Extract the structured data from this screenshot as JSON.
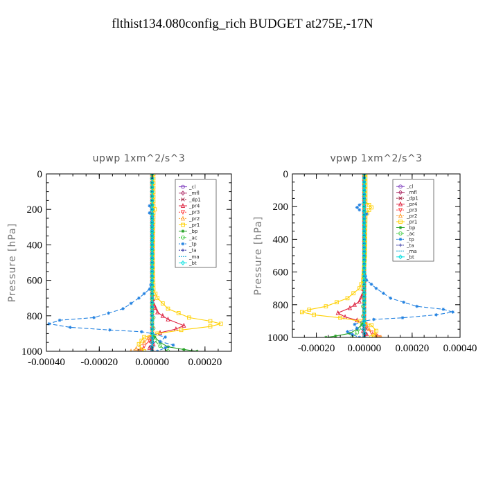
{
  "page_title": "flthist134.080config_rich  BUDGET at275E,-17N",
  "chart_data": [
    {
      "type": "line",
      "title": "upwp   1xm^2/s^3",
      "xlabel": "",
      "ylabel": "Pressure  [hPa]",
      "xlim": [
        -0.0004,
        0.0003
      ],
      "ylim": [
        1000,
        0
      ],
      "xticks": [
        -0.0004,
        -0.0002,
        0.0,
        0.0002
      ],
      "xtick_labels": [
        "-0.00040",
        "-0.00020",
        "0.00000",
        "0.00020"
      ],
      "yticks": [
        0,
        200,
        400,
        600,
        800,
        1000
      ],
      "ytick_labels": [
        "0",
        "200",
        "400",
        "600",
        "800",
        "1000"
      ],
      "legend_position": "top-right",
      "series": [
        {
          "name": "_cl",
          "color": "#7f3fbf",
          "marker": "circle",
          "dash": "solid",
          "points": [
            [
              0,
              0
            ],
            [
              0,
              1000
            ]
          ]
        },
        {
          "name": "_mfl",
          "color": "#b0306a",
          "marker": "diamond",
          "dash": "solid",
          "points": [
            [
              0,
              0
            ],
            [
              0,
              1000
            ]
          ]
        },
        {
          "name": "_dp1",
          "color": "#a02040",
          "marker": "x",
          "dash": "dash",
          "points": [
            [
              0,
              0
            ],
            [
              0,
              1000
            ]
          ]
        },
        {
          "name": "_pr4",
          "color": "#dd1f3c",
          "marker": "tri",
          "dash": "solid",
          "points": [
            [
              0,
              0
            ],
            [
              0,
              650
            ],
            [
              5e-06,
              730
            ],
            [
              2e-05,
              780
            ],
            [
              6e-05,
              820
            ],
            [
              0.00012,
              855
            ],
            [
              9e-05,
              875
            ],
            [
              3e-05,
              895
            ],
            [
              0,
              910
            ],
            [
              -5e-06,
              940
            ],
            [
              5e-06,
              960
            ],
            [
              -1e-05,
              980
            ],
            [
              0,
              1000
            ]
          ]
        },
        {
          "name": "_pr3",
          "color": "#ff4545",
          "marker": "tri-down",
          "dash": "dash",
          "points": [
            [
              0,
              0
            ],
            [
              0,
              900
            ],
            [
              -1e-05,
              940
            ],
            [
              -3e-05,
              970
            ],
            [
              -4e-05,
              990
            ],
            [
              -5e-05,
              1000
            ]
          ]
        },
        {
          "name": "_pr2",
          "color": "#ff9f30",
          "marker": "tri",
          "dash": "dash",
          "points": [
            [
              0,
              0
            ],
            [
              0,
              900
            ],
            [
              -3e-05,
              950
            ],
            [
              -6e-05,
              985
            ],
            [
              -8e-05,
              1000
            ]
          ]
        },
        {
          "name": "_pr1",
          "color": "#ffd000",
          "marker": "square",
          "dash": "solid",
          "points": [
            [
              5e-06,
              0
            ],
            [
              5e-06,
              180
            ],
            [
              1e-05,
              200
            ],
            [
              5e-06,
              220
            ],
            [
              3e-06,
              500
            ],
            [
              5e-06,
              650
            ],
            [
              2e-05,
              700
            ],
            [
              6e-05,
              760
            ],
            [
              0.00014,
              810
            ],
            [
              0.00022,
              830
            ],
            [
              0.00026,
              845
            ],
            [
              0.00022,
              860
            ],
            [
              0.00011,
              880
            ],
            [
              2e-05,
              900
            ],
            [
              -3e-05,
              920
            ],
            [
              -5e-05,
              960
            ],
            [
              -4e-05,
              990
            ],
            [
              -3e-05,
              1000
            ]
          ]
        },
        {
          "name": "_bp",
          "color": "#22a022",
          "marker": "star",
          "dash": "solid",
          "points": [
            [
              0,
              0
            ],
            [
              0,
              900
            ],
            [
              1e-05,
              920
            ],
            [
              3e-05,
              950
            ],
            [
              6e-05,
              975
            ],
            [
              0.00012,
              990
            ],
            [
              0.00017,
              1000
            ]
          ]
        },
        {
          "name": "_ac",
          "color": "#44cc44",
          "marker": "circle",
          "dash": "dash",
          "points": [
            [
              0,
              0
            ],
            [
              0,
              780
            ],
            [
              5e-06,
              810
            ],
            [
              0,
              840
            ],
            [
              5e-06,
              870
            ],
            [
              0,
              900
            ],
            [
              1e-05,
              940
            ],
            [
              3e-05,
              970
            ],
            [
              6e-05,
              1000
            ]
          ]
        },
        {
          "name": "_tp",
          "color": "#2080e0",
          "marker": "star",
          "dash": "dash",
          "points": [
            [
              -1e-05,
              180
            ],
            [
              0,
              200
            ],
            [
              -1e-05,
              220
            ],
            [
              0,
              240
            ],
            [
              0,
              600
            ],
            [
              -1e-05,
              650
            ],
            [
              -5e-05,
              700
            ],
            [
              -0.00011,
              760
            ],
            [
              -0.00022,
              810
            ],
            [
              -0.00035,
              825
            ],
            [
              -0.00039,
              845
            ],
            [
              -0.00031,
              865
            ],
            [
              -0.00016,
              880
            ],
            [
              -4e-05,
              890
            ],
            [
              0,
              900
            ],
            [
              5e-05,
              920
            ],
            [
              3e-05,
              945
            ],
            [
              8e-05,
              965
            ],
            [
              5e-05,
              980
            ],
            [
              2e-05,
              1000
            ]
          ]
        },
        {
          "name": "_ta",
          "color": "#3030a0",
          "marker": "plus",
          "dash": "dash",
          "points": [
            [
              0,
              0
            ],
            [
              0,
              900
            ],
            [
              5e-06,
              950
            ],
            [
              -5e-06,
              975
            ],
            [
              0,
              1000
            ]
          ]
        },
        {
          "name": "_ma",
          "color": "#00a0d0",
          "marker": "none",
          "dash": "dashdot",
          "points": [
            [
              0,
              0
            ],
            [
              0,
              1000
            ]
          ]
        },
        {
          "name": "_bt",
          "color": "#00e0e0",
          "marker": "diamond",
          "dash": "solid",
          "points": [
            [
              0,
              0
            ],
            [
              0,
              1000
            ]
          ]
        }
      ]
    },
    {
      "type": "line",
      "title": "vpwp   1xm^2/s^3",
      "xlabel": "",
      "ylabel": "Pressure  [hPa]",
      "xlim": [
        -0.0003,
        0.0004
      ],
      "ylim": [
        1000,
        0
      ],
      "xticks": [
        -0.0002,
        0.0,
        0.0002,
        0.0004
      ],
      "xtick_labels": [
        "-0.00020",
        "0.00000",
        "0.00020",
        "0.00040"
      ],
      "yticks": [
        0,
        200,
        400,
        600,
        800,
        1000
      ],
      "ytick_labels": [
        "0",
        "200",
        "400",
        "600",
        "800",
        "1000"
      ],
      "legend_position": "top-right",
      "series": [
        {
          "name": "_cl",
          "color": "#7f3fbf",
          "marker": "circle",
          "dash": "solid",
          "points": [
            [
              0,
              0
            ],
            [
              0,
              1000
            ]
          ]
        },
        {
          "name": "_mfl",
          "color": "#b0306a",
          "marker": "diamond",
          "dash": "solid",
          "points": [
            [
              0,
              0
            ],
            [
              0,
              1000
            ]
          ]
        },
        {
          "name": "_dp1",
          "color": "#a02040",
          "marker": "x",
          "dash": "dash",
          "points": [
            [
              0,
              0
            ],
            [
              0,
              1000
            ]
          ]
        },
        {
          "name": "_pr4",
          "color": "#dd1f3c",
          "marker": "tri",
          "dash": "solid",
          "points": [
            [
              0,
              0
            ],
            [
              0,
              650
            ],
            [
              -5e-06,
              730
            ],
            [
              -2e-05,
              780
            ],
            [
              -6e-05,
              820
            ],
            [
              -0.00011,
              850
            ],
            [
              -8e-05,
              875
            ],
            [
              -3e-05,
              895
            ],
            [
              0,
              910
            ],
            [
              5e-06,
              940
            ],
            [
              -5e-06,
              960
            ],
            [
              1e-05,
              980
            ],
            [
              0,
              1000
            ]
          ]
        },
        {
          "name": "_pr3",
          "color": "#ff4545",
          "marker": "tri-down",
          "dash": "dash",
          "points": [
            [
              0,
              0
            ],
            [
              0,
              900
            ],
            [
              1e-05,
              940
            ],
            [
              3e-05,
              970
            ],
            [
              5e-05,
              990
            ],
            [
              6e-05,
              1000
            ]
          ]
        },
        {
          "name": "_pr2",
          "color": "#ff9f30",
          "marker": "tri",
          "dash": "dash",
          "points": [
            [
              0,
              0
            ],
            [
              0,
              900
            ],
            [
              2e-05,
              950
            ],
            [
              5e-05,
              985
            ],
            [
              7e-05,
              1000
            ]
          ]
        },
        {
          "name": "_pr1",
          "color": "#ffd000",
          "marker": "square",
          "dash": "solid",
          "points": [
            [
              5e-06,
              0
            ],
            [
              5e-06,
              170
            ],
            [
              2e-05,
              190
            ],
            [
              3e-05,
              205
            ],
            [
              2e-05,
              220
            ],
            [
              5e-06,
              260
            ],
            [
              3e-06,
              500
            ],
            [
              -5e-06,
              650
            ],
            [
              -2e-05,
              700
            ],
            [
              -7e-05,
              760
            ],
            [
              -0.00016,
              810
            ],
            [
              -0.00023,
              830
            ],
            [
              -0.00026,
              845
            ],
            [
              -0.00021,
              862
            ],
            [
              -0.0001,
              880
            ],
            [
              -2e-05,
              900
            ],
            [
              3e-05,
              925
            ],
            [
              5e-05,
              960
            ],
            [
              4e-05,
              990
            ],
            [
              3e-05,
              1000
            ]
          ]
        },
        {
          "name": "_bp",
          "color": "#22a022",
          "marker": "star",
          "dash": "solid",
          "points": [
            [
              0,
              0
            ],
            [
              0,
              900
            ],
            [
              -1e-05,
              920
            ],
            [
              -3e-05,
              950
            ],
            [
              -6e-05,
              975
            ],
            [
              -0.00012,
              992
            ],
            [
              -0.00016,
              1000
            ]
          ]
        },
        {
          "name": "_ac",
          "color": "#44cc44",
          "marker": "circle",
          "dash": "dash",
          "points": [
            [
              0,
              0
            ],
            [
              0,
              780
            ],
            [
              -5e-06,
              810
            ],
            [
              0,
              840
            ],
            [
              -5e-06,
              870
            ],
            [
              0,
              900
            ],
            [
              -1e-05,
              940
            ],
            [
              -3e-05,
              970
            ],
            [
              -5e-05,
              1000
            ]
          ]
        },
        {
          "name": "_tp",
          "color": "#2080e0",
          "marker": "star",
          "dash": "dash",
          "points": [
            [
              0,
              0
            ],
            [
              0,
              170
            ],
            [
              -2e-05,
              190
            ],
            [
              -3e-05,
              205
            ],
            [
              -2e-05,
              220
            ],
            [
              1e-05,
              245
            ],
            [
              0,
              270
            ],
            [
              0,
              600
            ],
            [
              1e-05,
              650
            ],
            [
              5e-05,
              700
            ],
            [
              0.00011,
              760
            ],
            [
              0.00022,
              810
            ],
            [
              0.00033,
              828
            ],
            [
              0.00037,
              845
            ],
            [
              0.0003,
              862
            ],
            [
              0.00016,
              880
            ],
            [
              4e-05,
              890
            ],
            [
              0,
              900
            ],
            [
              -4e-05,
              920
            ],
            [
              -3e-05,
              945
            ],
            [
              -7e-05,
              965
            ],
            [
              -5e-05,
              982
            ],
            [
              -2e-05,
              1000
            ]
          ]
        },
        {
          "name": "_ta",
          "color": "#3030a0",
          "marker": "plus",
          "dash": "dash",
          "points": [
            [
              0,
              0
            ],
            [
              0,
              900
            ],
            [
              -5e-06,
              950
            ],
            [
              5e-06,
              975
            ],
            [
              0,
              1000
            ]
          ]
        },
        {
          "name": "_ma",
          "color": "#00a0d0",
          "marker": "none",
          "dash": "dashdot",
          "points": [
            [
              0,
              0
            ],
            [
              0,
              1000
            ]
          ]
        },
        {
          "name": "_bt",
          "color": "#00e0e0",
          "marker": "diamond",
          "dash": "solid",
          "points": [
            [
              0,
              0
            ],
            [
              0,
              1000
            ]
          ]
        }
      ]
    }
  ]
}
